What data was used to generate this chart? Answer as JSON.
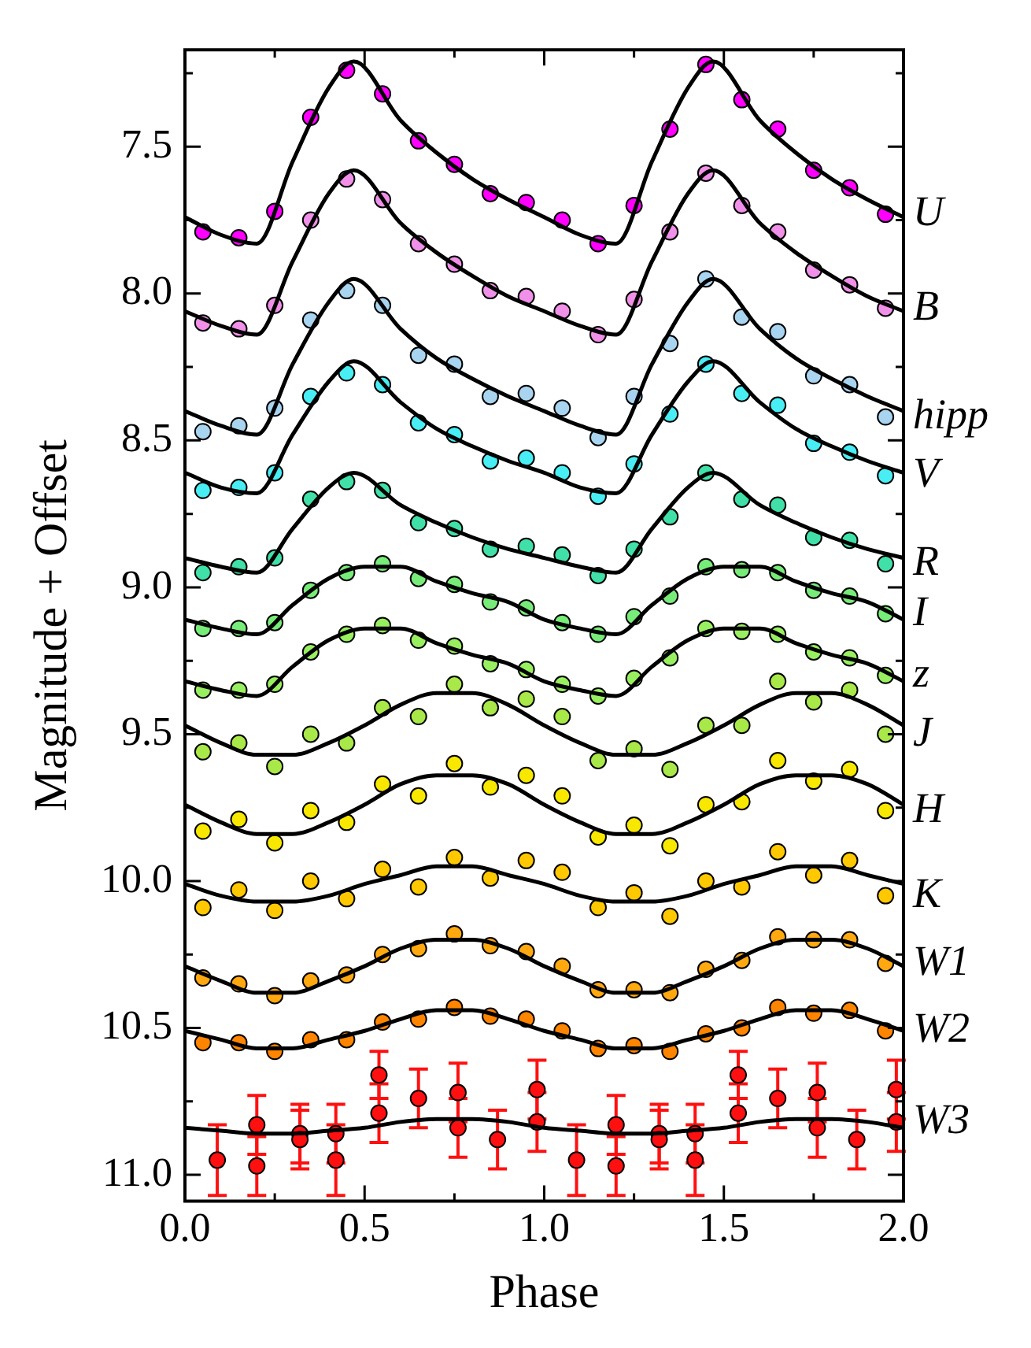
{
  "chart_data": {
    "type": "scatter",
    "xlabel": "Phase",
    "ylabel": "Magnitude + Offset",
    "xlim": [
      0,
      2
    ],
    "ylim": [
      11.09,
      7.17
    ],
    "xticks": [
      {
        "value": 0,
        "label": "0.0"
      },
      {
        "value": 0.25,
        "label": null
      },
      {
        "value": 0.5,
        "label": "0.5"
      },
      {
        "value": 0.75,
        "label": null
      },
      {
        "value": 1,
        "label": "1.0"
      },
      {
        "value": 1.25,
        "label": null
      },
      {
        "value": 1.5,
        "label": "1.5"
      },
      {
        "value": 1.75,
        "label": null
      },
      {
        "value": 2,
        "label": "2.0"
      }
    ],
    "yticks": [
      {
        "value": 7.25,
        "label": null
      },
      7.5,
      {
        "value": 7.75,
        "label": null
      },
      {
        "value": 8,
        "label": "8.0"
      },
      {
        "value": 8.25,
        "label": null
      },
      8.5,
      {
        "value": 8.75,
        "label": null
      },
      {
        "value": 9,
        "label": "9.0"
      },
      {
        "value": 9.25,
        "label": null
      },
      9.5,
      {
        "value": 9.75,
        "label": null
      },
      {
        "value": 10,
        "label": "10.0"
      },
      {
        "value": 10.25,
        "label": null
      },
      10.5,
      {
        "value": 10.75,
        "label": null
      },
      {
        "value": 11,
        "label": "11.0"
      }
    ],
    "grid": false,
    "legend": "right",
    "marker": "circle",
    "series": [
      {
        "name": "U",
        "type": "scatter",
        "color": "#ff00ff",
        "x": [
          0.05,
          0.15,
          0.25,
          0.35,
          0.45,
          0.55,
          0.65,
          0.75,
          0.85,
          0.95,
          1.05,
          1.15,
          1.25,
          1.35,
          1.45,
          1.55,
          1.65,
          1.75,
          1.85,
          1.95
        ],
        "values": [
          7.79,
          7.81,
          7.72,
          7.4,
          7.24,
          7.32,
          7.48,
          7.56,
          7.66,
          7.69,
          7.75,
          7.83,
          7.7,
          7.44,
          7.22,
          7.34,
          7.44,
          7.58,
          7.64,
          7.73
        ]
      },
      {
        "type": "line",
        "color": "#000000",
        "x": [
          0,
          0.1,
          0.2,
          0.3,
          0.4,
          0.47,
          0.6,
          0.7,
          0.8,
          0.9,
          1,
          1.1,
          1.2,
          1.3,
          1.4,
          1.47,
          1.6,
          1.7,
          1.8,
          1.9,
          2
        ],
        "values": [
          7.74,
          7.8,
          7.83,
          7.55,
          7.3,
          7.21,
          7.41,
          7.52,
          7.61,
          7.68,
          7.74,
          7.8,
          7.83,
          7.55,
          7.3,
          7.21,
          7.41,
          7.52,
          7.61,
          7.68,
          7.74
        ],
        "marker": "none"
      },
      {
        "name": "B",
        "type": "scatter",
        "color": "#f090e8",
        "x": [
          0.05,
          0.15,
          0.25,
          0.35,
          0.45,
          0.55,
          0.65,
          0.75,
          0.85,
          0.95,
          1.05,
          1.15,
          1.25,
          1.35,
          1.45,
          1.55,
          1.65,
          1.75,
          1.85,
          1.95
        ],
        "values": [
          8.1,
          8.12,
          8.04,
          7.75,
          7.61,
          7.68,
          7.83,
          7.9,
          7.99,
          8.01,
          8.06,
          8.14,
          8.02,
          7.79,
          7.59,
          7.7,
          7.79,
          7.92,
          7.97,
          8.05
        ]
      },
      {
        "type": "line",
        "color": "#000000",
        "x": [
          0,
          0.1,
          0.2,
          0.3,
          0.4,
          0.47,
          0.6,
          0.7,
          0.8,
          0.9,
          1,
          1.1,
          1.2,
          1.3,
          1.4,
          1.47,
          1.6,
          1.7,
          1.8,
          1.9,
          2
        ],
        "values": [
          8.06,
          8.11,
          8.14,
          7.89,
          7.66,
          7.58,
          7.76,
          7.86,
          7.94,
          8.01,
          8.06,
          8.11,
          8.14,
          7.89,
          7.66,
          7.58,
          7.76,
          7.86,
          7.94,
          8.01,
          8.06
        ],
        "marker": "none"
      },
      {
        "name": "hipp",
        "type": "scatter",
        "color": "#a8d4f0",
        "x": [
          0.05,
          0.15,
          0.25,
          0.35,
          0.45,
          0.55,
          0.65,
          0.75,
          0.85,
          0.95,
          1.05,
          1.15,
          1.25,
          1.35,
          1.45,
          1.55,
          1.65,
          1.75,
          1.85,
          1.95
        ],
        "values": [
          8.47,
          8.45,
          8.39,
          8.09,
          7.99,
          8.04,
          8.21,
          8.24,
          8.35,
          8.34,
          8.39,
          8.49,
          8.35,
          8.17,
          7.95,
          8.08,
          8.13,
          8.28,
          8.31,
          8.42
        ]
      },
      {
        "type": "line",
        "color": "#000000",
        "x": [
          0,
          0.1,
          0.2,
          0.3,
          0.4,
          0.47,
          0.6,
          0.7,
          0.8,
          0.9,
          1,
          1.1,
          1.2,
          1.3,
          1.4,
          1.47,
          1.6,
          1.7,
          1.8,
          1.9,
          2
        ],
        "values": [
          8.4,
          8.45,
          8.48,
          8.24,
          8.03,
          7.95,
          8.12,
          8.22,
          8.29,
          8.35,
          8.4,
          8.45,
          8.48,
          8.24,
          8.03,
          7.95,
          8.12,
          8.22,
          8.29,
          8.35,
          8.4
        ],
        "marker": "none"
      },
      {
        "name": "V",
        "type": "scatter",
        "color": "#48eef4",
        "x": [
          0.05,
          0.15,
          0.25,
          0.35,
          0.45,
          0.55,
          0.65,
          0.75,
          0.85,
          0.95,
          1.05,
          1.15,
          1.25,
          1.35,
          1.45,
          1.55,
          1.65,
          1.75,
          1.85,
          1.95
        ],
        "values": [
          8.67,
          8.66,
          8.61,
          8.35,
          8.27,
          8.31,
          8.44,
          8.48,
          8.57,
          8.56,
          8.61,
          8.69,
          8.58,
          8.41,
          8.24,
          8.34,
          8.38,
          8.51,
          8.54,
          8.62
        ]
      },
      {
        "type": "line",
        "color": "#000000",
        "x": [
          0,
          0.1,
          0.2,
          0.3,
          0.4,
          0.47,
          0.6,
          0.7,
          0.8,
          0.9,
          1,
          1.1,
          1.2,
          1.3,
          1.4,
          1.47,
          1.6,
          1.7,
          1.8,
          1.9,
          2
        ],
        "values": [
          8.61,
          8.66,
          8.68,
          8.48,
          8.3,
          8.23,
          8.37,
          8.46,
          8.52,
          8.57,
          8.61,
          8.66,
          8.68,
          8.48,
          8.3,
          8.23,
          8.37,
          8.46,
          8.52,
          8.57,
          8.61
        ],
        "marker": "none"
      },
      {
        "name": "R",
        "type": "scatter",
        "color": "#40e0a8",
        "x": [
          0.05,
          0.15,
          0.25,
          0.35,
          0.45,
          0.55,
          0.65,
          0.75,
          0.85,
          0.95,
          1.05,
          1.15,
          1.25,
          1.35,
          1.45,
          1.55,
          1.65,
          1.75,
          1.85,
          1.95
        ],
        "values": [
          8.95,
          8.93,
          8.9,
          8.7,
          8.64,
          8.67,
          8.78,
          8.8,
          8.87,
          8.86,
          8.89,
          8.96,
          8.87,
          8.76,
          8.61,
          8.7,
          8.72,
          8.83,
          8.84,
          8.92
        ]
      },
      {
        "type": "line",
        "color": "#000000",
        "x": [
          0,
          0.1,
          0.2,
          0.3,
          0.4,
          0.47,
          0.6,
          0.7,
          0.8,
          0.9,
          1,
          1.1,
          1.2,
          1.3,
          1.4,
          1.47,
          1.6,
          1.7,
          1.8,
          1.9,
          2
        ],
        "values": [
          8.9,
          8.93,
          8.95,
          8.8,
          8.66,
          8.61,
          8.72,
          8.78,
          8.83,
          8.87,
          8.9,
          8.93,
          8.95,
          8.8,
          8.66,
          8.61,
          8.72,
          8.78,
          8.83,
          8.87,
          8.9
        ],
        "marker": "none"
      },
      {
        "name": "I",
        "type": "scatter",
        "color": "#78ec78",
        "x": [
          0.05,
          0.15,
          0.25,
          0.35,
          0.45,
          0.55,
          0.65,
          0.75,
          0.85,
          0.95,
          1.05,
          1.15,
          1.25,
          1.35,
          1.45,
          1.55,
          1.65,
          1.75,
          1.85,
          1.95
        ],
        "values": [
          9.14,
          9.14,
          9.12,
          9.01,
          8.95,
          8.92,
          8.97,
          8.99,
          9.05,
          9.07,
          9.12,
          9.16,
          9.1,
          9.03,
          8.93,
          8.94,
          8.95,
          9.01,
          9.03,
          9.09
        ]
      },
      {
        "type": "line",
        "color": "#000000",
        "x": [
          0,
          0.1,
          0.2,
          0.3,
          0.4,
          0.5,
          0.6,
          0.7,
          0.8,
          0.9,
          1,
          1.1,
          1.2,
          1.3,
          1.4,
          1.5,
          1.6,
          1.7,
          1.8,
          1.9,
          2
        ],
        "values": [
          9.11,
          9.14,
          9.16,
          9.06,
          8.97,
          8.93,
          8.93,
          8.98,
          9.02,
          9.05,
          9.11,
          9.14,
          9.16,
          9.06,
          8.97,
          8.93,
          8.93,
          8.98,
          9.02,
          9.05,
          9.11
        ],
        "marker": "none"
      },
      {
        "name": "z",
        "type": "scatter",
        "color": "#98f060",
        "x": [
          0.05,
          0.15,
          0.25,
          0.35,
          0.45,
          0.55,
          0.65,
          0.75,
          0.85,
          0.95,
          1.05,
          1.15,
          1.25,
          1.35,
          1.45,
          1.55,
          1.65,
          1.75,
          1.85,
          1.95
        ],
        "values": [
          9.35,
          9.35,
          9.33,
          9.22,
          9.16,
          9.13,
          9.18,
          9.2,
          9.26,
          9.28,
          9.33,
          9.37,
          9.31,
          9.24,
          9.14,
          9.15,
          9.16,
          9.22,
          9.24,
          9.3
        ]
      },
      {
        "type": "line",
        "color": "#000000",
        "x": [
          0,
          0.1,
          0.2,
          0.3,
          0.4,
          0.5,
          0.6,
          0.7,
          0.8,
          0.9,
          1,
          1.1,
          1.2,
          1.3,
          1.4,
          1.5,
          1.6,
          1.7,
          1.8,
          1.9,
          2
        ],
        "values": [
          9.32,
          9.35,
          9.37,
          9.27,
          9.18,
          9.14,
          9.14,
          9.19,
          9.23,
          9.26,
          9.32,
          9.35,
          9.37,
          9.27,
          9.18,
          9.14,
          9.14,
          9.19,
          9.23,
          9.26,
          9.32
        ],
        "marker": "none"
      },
      {
        "name": "J",
        "type": "scatter",
        "color": "#a8e848",
        "x": [
          0.05,
          0.15,
          0.25,
          0.35,
          0.45,
          0.55,
          0.65,
          0.75,
          0.85,
          0.95,
          1.05,
          1.15,
          1.25,
          1.35,
          1.45,
          1.55,
          1.65,
          1.75,
          1.85,
          1.95
        ],
        "values": [
          9.56,
          9.53,
          9.61,
          9.5,
          9.53,
          9.41,
          9.44,
          9.33,
          9.41,
          9.38,
          9.44,
          9.59,
          9.55,
          9.62,
          9.47,
          9.47,
          9.32,
          9.39,
          9.35,
          9.5
        ]
      },
      {
        "type": "line",
        "color": "#000000",
        "x": [
          0,
          0.1,
          0.2,
          0.3,
          0.4,
          0.5,
          0.6,
          0.7,
          0.8,
          0.9,
          1,
          1.1,
          1.2,
          1.3,
          1.4,
          1.5,
          1.6,
          1.7,
          1.8,
          1.9,
          2
        ],
        "values": [
          9.47,
          9.53,
          9.57,
          9.57,
          9.53,
          9.47,
          9.4,
          9.36,
          9.36,
          9.4,
          9.47,
          9.53,
          9.57,
          9.57,
          9.53,
          9.47,
          9.4,
          9.36,
          9.36,
          9.4,
          9.47
        ],
        "marker": "none"
      },
      {
        "name": "H",
        "type": "scatter",
        "color": "#f8e800",
        "x": [
          0.05,
          0.15,
          0.25,
          0.35,
          0.45,
          0.55,
          0.65,
          0.75,
          0.85,
          0.95,
          1.05,
          1.15,
          1.25,
          1.35,
          1.45,
          1.55,
          1.65,
          1.75,
          1.85,
          1.95
        ],
        "values": [
          9.83,
          9.79,
          9.87,
          9.76,
          9.8,
          9.67,
          9.71,
          9.6,
          9.68,
          9.64,
          9.71,
          9.85,
          9.81,
          9.88,
          9.74,
          9.73,
          9.59,
          9.66,
          9.62,
          9.76
        ]
      },
      {
        "type": "line",
        "color": "#000000",
        "x": [
          0,
          0.1,
          0.2,
          0.3,
          0.4,
          0.5,
          0.6,
          0.7,
          0.8,
          0.9,
          1,
          1.1,
          1.2,
          1.3,
          1.4,
          1.5,
          1.6,
          1.7,
          1.8,
          1.9,
          2
        ],
        "values": [
          9.74,
          9.8,
          9.84,
          9.84,
          9.8,
          9.74,
          9.67,
          9.64,
          9.64,
          9.67,
          9.74,
          9.8,
          9.84,
          9.84,
          9.8,
          9.74,
          9.67,
          9.64,
          9.64,
          9.67,
          9.74
        ],
        "marker": "none"
      },
      {
        "name": "K",
        "type": "scatter",
        "color": "#ffc800",
        "x": [
          0.05,
          0.15,
          0.25,
          0.35,
          0.45,
          0.55,
          0.65,
          0.75,
          0.85,
          0.95,
          1.05,
          1.15,
          1.25,
          1.35,
          1.45,
          1.55,
          1.65,
          1.75,
          1.85,
          1.95
        ],
        "values": [
          10.09,
          10.03,
          10.1,
          10.0,
          10.06,
          9.96,
          10.02,
          9.92,
          9.99,
          9.93,
          9.97,
          10.09,
          10.04,
          10.12,
          10.0,
          10.02,
          9.9,
          9.98,
          9.93,
          10.05
        ]
      },
      {
        "type": "line",
        "color": "#000000",
        "x": [
          0,
          0.1,
          0.2,
          0.3,
          0.4,
          0.5,
          0.6,
          0.7,
          0.8,
          0.9,
          1,
          1.1,
          1.2,
          1.3,
          1.4,
          1.5,
          1.6,
          1.7,
          1.8,
          1.9,
          2
        ],
        "values": [
          10.01,
          10.05,
          10.07,
          10.07,
          10.05,
          10.01,
          9.98,
          9.95,
          9.95,
          9.98,
          10.01,
          10.05,
          10.07,
          10.07,
          10.05,
          10.01,
          9.98,
          9.95,
          9.95,
          9.98,
          10.01
        ],
        "marker": "none"
      },
      {
        "name": "W1",
        "type": "scatter",
        "color": "#ffa810",
        "x": [
          0.05,
          0.15,
          0.25,
          0.35,
          0.45,
          0.55,
          0.65,
          0.75,
          0.85,
          0.95,
          1.05,
          1.15,
          1.25,
          1.35,
          1.45,
          1.55,
          1.65,
          1.75,
          1.85,
          1.95
        ],
        "values": [
          10.33,
          10.35,
          10.39,
          10.34,
          10.32,
          10.25,
          10.23,
          10.18,
          10.22,
          10.24,
          10.29,
          10.37,
          10.37,
          10.38,
          10.3,
          10.27,
          10.19,
          10.2,
          10.2,
          10.28
        ]
      },
      {
        "type": "line",
        "color": "#000000",
        "x": [
          0,
          0.1,
          0.2,
          0.3,
          0.4,
          0.5,
          0.6,
          0.7,
          0.8,
          0.9,
          1,
          1.1,
          1.2,
          1.3,
          1.4,
          1.5,
          1.6,
          1.7,
          1.8,
          1.9,
          2
        ],
        "values": [
          10.29,
          10.34,
          10.38,
          10.38,
          10.34,
          10.29,
          10.23,
          10.2,
          10.2,
          10.23,
          10.29,
          10.34,
          10.38,
          10.38,
          10.34,
          10.29,
          10.23,
          10.2,
          10.2,
          10.23,
          10.29
        ],
        "marker": "none"
      },
      {
        "name": "W2",
        "type": "scatter",
        "color": "#ff8400",
        "x": [
          0.05,
          0.15,
          0.25,
          0.35,
          0.45,
          0.55,
          0.65,
          0.75,
          0.85,
          0.95,
          1.05,
          1.15,
          1.25,
          1.35,
          1.45,
          1.55,
          1.65,
          1.75,
          1.85,
          1.95
        ],
        "values": [
          10.55,
          10.55,
          10.58,
          10.54,
          10.54,
          10.48,
          10.47,
          10.43,
          10.46,
          10.47,
          10.51,
          10.57,
          10.56,
          10.58,
          10.52,
          10.5,
          10.43,
          10.45,
          10.44,
          10.51
        ]
      },
      {
        "type": "line",
        "color": "#000000",
        "x": [
          0,
          0.1,
          0.2,
          0.3,
          0.4,
          0.5,
          0.6,
          0.7,
          0.8,
          0.9,
          1,
          1.1,
          1.2,
          1.3,
          1.4,
          1.5,
          1.6,
          1.7,
          1.8,
          1.9,
          2
        ],
        "values": [
          10.51,
          10.54,
          10.57,
          10.57,
          10.54,
          10.51,
          10.47,
          10.44,
          10.44,
          10.47,
          10.51,
          10.54,
          10.57,
          10.57,
          10.54,
          10.51,
          10.47,
          10.44,
          10.44,
          10.47,
          10.51
        ],
        "marker": "none"
      },
      {
        "name": "W3",
        "type": "scatter",
        "color": "#ff1010",
        "x": [
          0.09,
          0.2,
          0.2,
          0.32,
          0.32,
          0.42,
          0.42,
          0.54,
          0.54,
          0.65,
          0.76,
          0.76,
          0.87,
          0.98,
          0.98,
          1.09,
          1.2,
          1.2,
          1.32,
          1.32,
          1.42,
          1.42,
          1.54,
          1.54,
          1.65,
          1.76,
          1.76,
          1.87,
          1.98,
          1.98
        ],
        "values": [
          10.95,
          10.83,
          10.97,
          10.86,
          10.88,
          10.86,
          10.95,
          10.79,
          10.66,
          10.74,
          10.72,
          10.84,
          10.88,
          10.71,
          10.82,
          10.95,
          10.83,
          10.97,
          10.86,
          10.88,
          10.86,
          10.95,
          10.79,
          10.66,
          10.74,
          10.72,
          10.84,
          10.88,
          10.71,
          10.82
        ],
        "errors": [
          0.12,
          0.1,
          0.1,
          0.1,
          0.1,
          0.1,
          0.12,
          0.1,
          0.08,
          0.1,
          0.1,
          0.1,
          0.1,
          0.1,
          0.1,
          0.12,
          0.1,
          0.1,
          0.1,
          0.1,
          0.1,
          0.12,
          0.1,
          0.08,
          0.1,
          0.1,
          0.1,
          0.1,
          0.1,
          0.1
        ]
      },
      {
        "type": "line",
        "color": "#000000",
        "x": [
          0,
          0.1,
          0.2,
          0.3,
          0.4,
          0.5,
          0.6,
          0.7,
          0.8,
          0.9,
          1,
          1.1,
          1.2,
          1.3,
          1.4,
          1.5,
          1.6,
          1.7,
          1.8,
          1.9,
          2
        ],
        "values": [
          10.84,
          10.85,
          10.86,
          10.86,
          10.85,
          10.84,
          10.82,
          10.81,
          10.81,
          10.82,
          10.84,
          10.85,
          10.86,
          10.86,
          10.85,
          10.84,
          10.82,
          10.81,
          10.81,
          10.82,
          10.84
        ],
        "marker": "none"
      }
    ]
  }
}
